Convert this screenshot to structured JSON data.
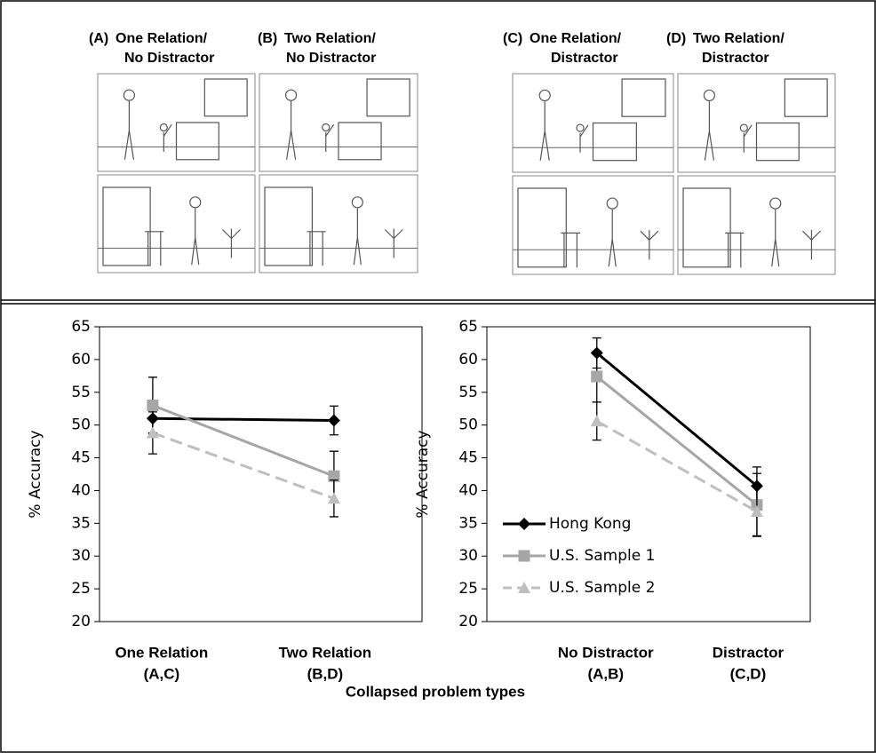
{
  "panels": [
    {
      "letter": "(A)",
      "lines": [
        "One Relation/",
        "No Distractor"
      ]
    },
    {
      "letter": "(B)",
      "lines": [
        "Two Relation/",
        "No Distractor"
      ]
    },
    {
      "letter": "(C)",
      "lines": [
        "One Relation/",
        "Distractor"
      ]
    },
    {
      "letter": "(D)",
      "lines": [
        "Two Relation/",
        "Distractor"
      ]
    }
  ],
  "x_label": "Collapsed problem types",
  "chart_data": [
    {
      "type": "line",
      "y_label": "% Accuracy",
      "categories": [
        [
          "One Relation",
          "(A,C)"
        ],
        [
          "Two Relation",
          "(B,D)"
        ]
      ],
      "ylim": [
        20,
        65
      ],
      "yticks": [
        20,
        25,
        30,
        35,
        40,
        45,
        50,
        55,
        60,
        65
      ],
      "legend": false,
      "series": [
        {
          "name": "Hong Kong",
          "color": "#000000",
          "marker": "diamond",
          "dashed": false,
          "values": [
            51,
            50.7
          ],
          "errors": [
            2.2,
            2.2
          ]
        },
        {
          "name": "U.S. Sample 1",
          "color": "#a6a6a6",
          "marker": "square",
          "dashed": false,
          "values": [
            53,
            42.2
          ],
          "errors": [
            4.3,
            3.8
          ]
        },
        {
          "name": "U.S. Sample 2",
          "color": "#bfbfbf",
          "marker": "triangle",
          "dashed": true,
          "values": [
            48.8,
            38.8
          ],
          "errors": [
            3.2,
            2.8
          ]
        }
      ]
    },
    {
      "type": "line",
      "y_label": "% Accuracy",
      "categories": [
        [
          "No Distractor",
          "(A,B)"
        ],
        [
          "Distractor",
          "(C,D)"
        ]
      ],
      "ylim": [
        20,
        65
      ],
      "yticks": [
        20,
        25,
        30,
        35,
        40,
        45,
        50,
        55,
        60,
        65
      ],
      "legend": "lower-left",
      "series": [
        {
          "name": "Hong Kong",
          "color": "#000000",
          "marker": "diamond",
          "dashed": false,
          "values": [
            61,
            40.7
          ],
          "errors": [
            2.3,
            2.9
          ]
        },
        {
          "name": "U.S. Sample 1",
          "color": "#a6a6a6",
          "marker": "square",
          "dashed": false,
          "values": [
            57.4,
            37.8
          ],
          "errors": [
            3.9,
            4.8
          ]
        },
        {
          "name": "U.S. Sample 2",
          "color": "#bfbfbf",
          "marker": "triangle",
          "dashed": true,
          "values": [
            50.6,
            36.8
          ],
          "errors": [
            2.9,
            3.7
          ]
        }
      ]
    }
  ]
}
